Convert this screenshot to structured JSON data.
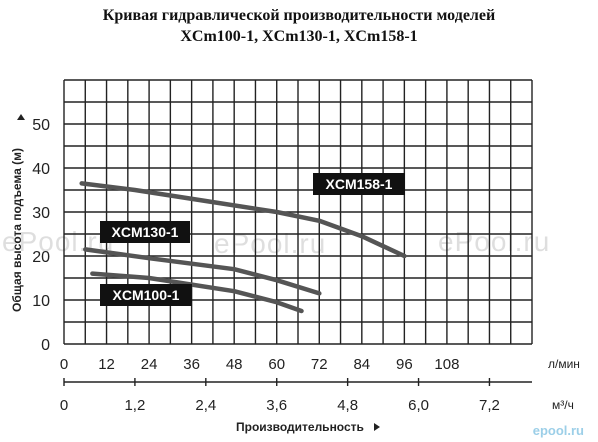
{
  "chart_data": {
    "type": "line",
    "title_line1": "Кривая гидравлической производительности моделей",
    "title_line2": "XCm100-1, XCm130-1, XCm158-1",
    "ylabel": "Общая высота подъема (м)",
    "xlabel": "Производительность",
    "y_ticks": [
      "0",
      "10",
      "20",
      "30",
      "40",
      "50"
    ],
    "ylim": [
      0,
      60
    ],
    "x_ticks_lpm": [
      "0",
      "12",
      "24",
      "36",
      "48",
      "60",
      "72",
      "84",
      "96",
      "108"
    ],
    "x_unit_lpm": "л/мин",
    "xlim_lpm": [
      0,
      132
    ],
    "x_ticks_m3h": [
      "0",
      "1,2",
      "2,4",
      "3,6",
      "4,8",
      "6,0",
      "7,2"
    ],
    "x_unit_m3h": "м³/ч",
    "grid": true,
    "series": [
      {
        "name": "XCM158-1",
        "x": [
          5,
          20,
          40,
          60,
          72,
          84,
          96
        ],
        "y": [
          36.5,
          35,
          32.5,
          30,
          28,
          24.5,
          20
        ]
      },
      {
        "name": "XCM130-1",
        "x": [
          6,
          24,
          48,
          60,
          72
        ],
        "y": [
          21.5,
          19.5,
          17,
          14.5,
          11.5
        ]
      },
      {
        "name": "XCM100-1",
        "x": [
          8,
          24,
          48,
          60,
          67
        ],
        "y": [
          16,
          15,
          12,
          9.5,
          7.5
        ]
      }
    ]
  },
  "watermark": "ePool.ru",
  "logo_text": "epool.ru"
}
